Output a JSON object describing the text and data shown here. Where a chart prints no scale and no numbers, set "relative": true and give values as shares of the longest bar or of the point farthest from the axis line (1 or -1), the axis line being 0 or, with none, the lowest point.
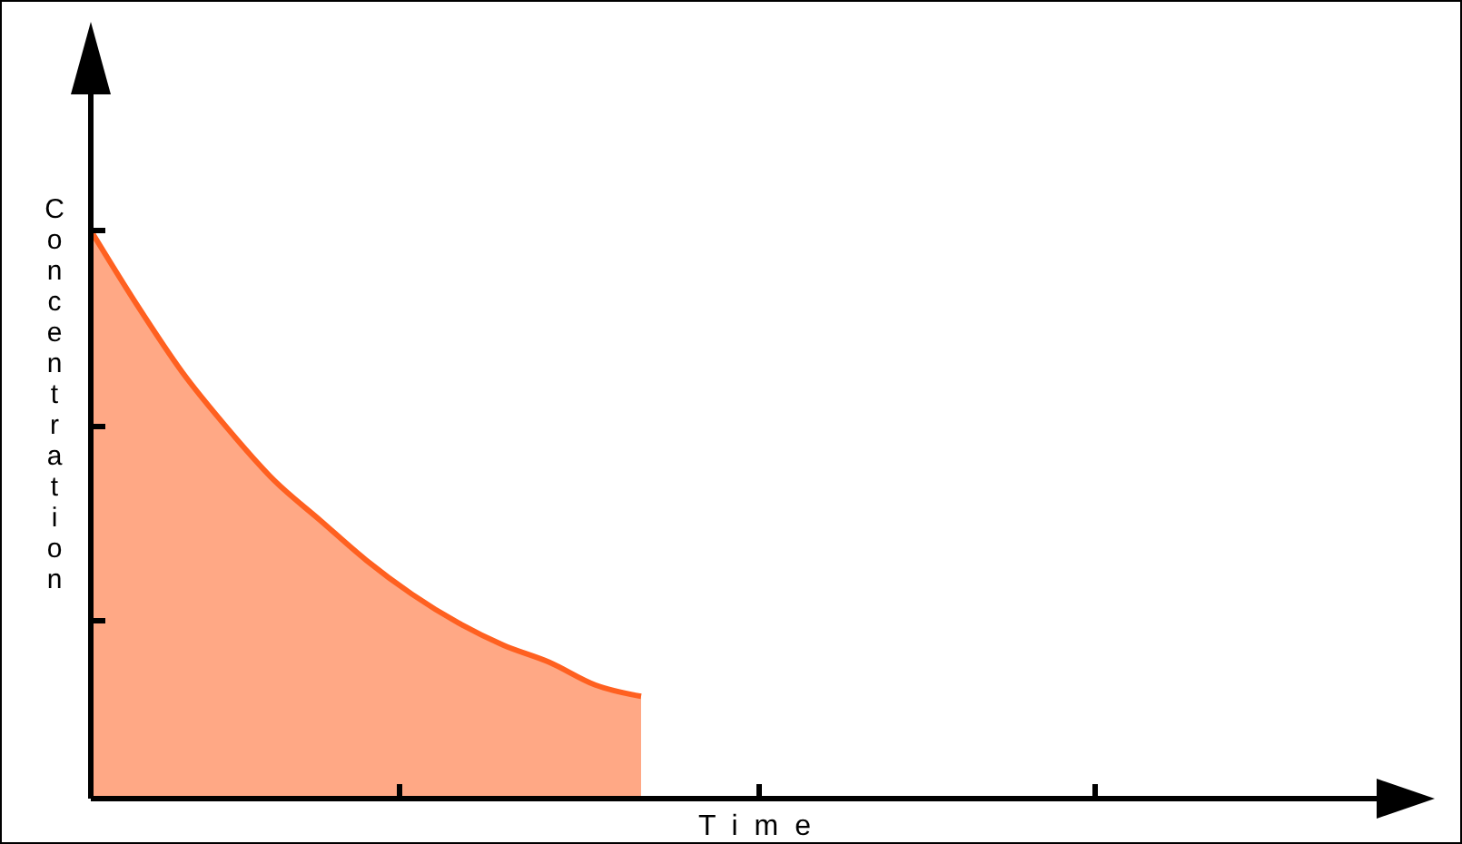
{
  "chart_data": {
    "type": "area",
    "relative": true,
    "xlabel": "Time",
    "ylabel": "Concentration",
    "categories": [
      null,
      null,
      null,
      null,
      null,
      null,
      null,
      null,
      null,
      null,
      null,
      null,
      null,
      null,
      null,
      null,
      null,
      null,
      null,
      null,
      null,
      null,
      null,
      null,
      null,
      null,
      null,
      null,
      null,
      null
    ],
    "series": [
      {
        "color": "#ff6020",
        "values": [
          1,
          0.87,
          0.75,
          0.65,
          0.56,
          0.49,
          0.42,
          0.36,
          0.31,
          0.27,
          0.24,
          0.2,
          0.18,
          null,
          null,
          null,
          null,
          null,
          null,
          null,
          null,
          null,
          null,
          null,
          null,
          null,
          null,
          null,
          null,
          null
        ]
      }
    ]
  }
}
